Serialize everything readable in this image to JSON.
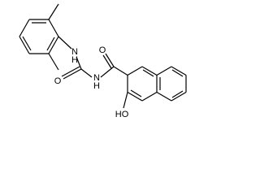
{
  "atoms": [
    "N",
    "H",
    "O",
    "N",
    "H",
    "O",
    "HO"
  ]
}
